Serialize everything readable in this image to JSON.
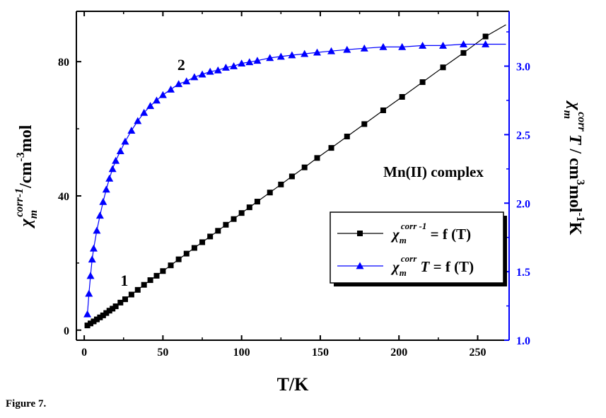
{
  "caption": "Figure 7.",
  "chart_data": {
    "type": "scatter",
    "xlabel": "T/K",
    "ylabel_left": {
      "symbol": "χ",
      "sub": "m",
      "sup": "corr-1",
      "unit": "/cm",
      "unit_sup": "-3",
      "unit_tail": "mol"
    },
    "ylabel_right": {
      "symbol": "χ",
      "sub": "m",
      "sup": "corr",
      "var": "T",
      "unit": " / cm",
      "unit_sup": "3",
      "unit_mid": "mol",
      "unit_sup2": "-1",
      "unit_tail": "K"
    },
    "xlim": [
      -5,
      270
    ],
    "xticks": [
      0,
      50,
      100,
      150,
      200,
      250
    ],
    "ylim_left": [
      -3,
      95
    ],
    "yticks_left": [
      0,
      40,
      80
    ],
    "ylim_right": [
      1.0,
      3.4
    ],
    "yticks_right": [
      1.0,
      1.5,
      2.0,
      2.5,
      3.0
    ],
    "annotation_complex": "Mn(II) complex",
    "curve_labels": [
      {
        "text": "1",
        "x": 30,
        "y": 17
      },
      {
        "text": "2",
        "x": 63,
        "y": 80
      }
    ],
    "legend": {
      "placement": "center-right",
      "entries": [
        {
          "symbol": "χ",
          "sub": "m",
          "sup": "corr -1",
          "var": "",
          "suffix": " = f (T)"
        },
        {
          "symbol": "χ",
          "sub": "m",
          "sup": "corr",
          "var": " T",
          "suffix": " = f (T)"
        }
      ]
    },
    "series": [
      {
        "axis": "left",
        "color": "#000000",
        "marker": "square",
        "x": [
          2,
          4,
          6,
          8,
          10,
          12,
          14,
          16,
          18,
          20,
          23,
          26,
          30,
          34,
          38,
          42,
          46,
          50,
          55,
          60,
          65,
          70,
          75,
          80,
          85,
          90,
          95,
          100,
          105,
          110,
          118,
          125,
          132,
          140,
          148,
          157,
          167,
          178,
          190,
          202,
          215,
          228,
          241,
          255
        ],
        "y": [
          1.4,
          2.0,
          2.6,
          3.2,
          3.8,
          4.4,
          5.1,
          5.8,
          6.4,
          7.1,
          8.2,
          9.2,
          10.6,
          12.0,
          13.5,
          14.9,
          16.2,
          17.6,
          19.3,
          21.1,
          22.8,
          24.5,
          26.2,
          27.9,
          29.6,
          31.4,
          33.1,
          34.9,
          36.6,
          38.3,
          41.0,
          43.4,
          45.8,
          48.5,
          51.3,
          54.3,
          57.7,
          61.4,
          65.5,
          69.5,
          73.9,
          78.3,
          82.6,
          87.5
        ],
        "fit_line": {
          "x": [
            2,
            268
          ],
          "y": [
            1.0,
            91.0
          ]
        }
      },
      {
        "axis": "right",
        "color": "#0000ff",
        "marker": "triangle",
        "x": [
          2,
          3,
          4,
          5,
          6,
          8,
          10,
          12,
          14,
          16,
          18,
          20,
          23,
          26,
          30,
          34,
          38,
          42,
          46,
          50,
          55,
          60,
          65,
          70,
          75,
          80,
          85,
          90,
          95,
          100,
          105,
          110,
          118,
          125,
          132,
          140,
          148,
          157,
          167,
          178,
          190,
          202,
          215,
          228,
          241,
          255
        ],
        "y": [
          1.19,
          1.34,
          1.47,
          1.59,
          1.67,
          1.8,
          1.91,
          2.01,
          2.1,
          2.18,
          2.25,
          2.31,
          2.38,
          2.45,
          2.53,
          2.6,
          2.66,
          2.71,
          2.75,
          2.79,
          2.83,
          2.87,
          2.89,
          2.92,
          2.94,
          2.96,
          2.97,
          2.99,
          3.0,
          3.02,
          3.03,
          3.04,
          3.06,
          3.07,
          3.08,
          3.09,
          3.1,
          3.11,
          3.12,
          3.13,
          3.14,
          3.14,
          3.15,
          3.15,
          3.16,
          3.16
        ],
        "fit_line": {
          "x": [
            268
          ],
          "y": [
            3.16
          ]
        }
      }
    ]
  }
}
